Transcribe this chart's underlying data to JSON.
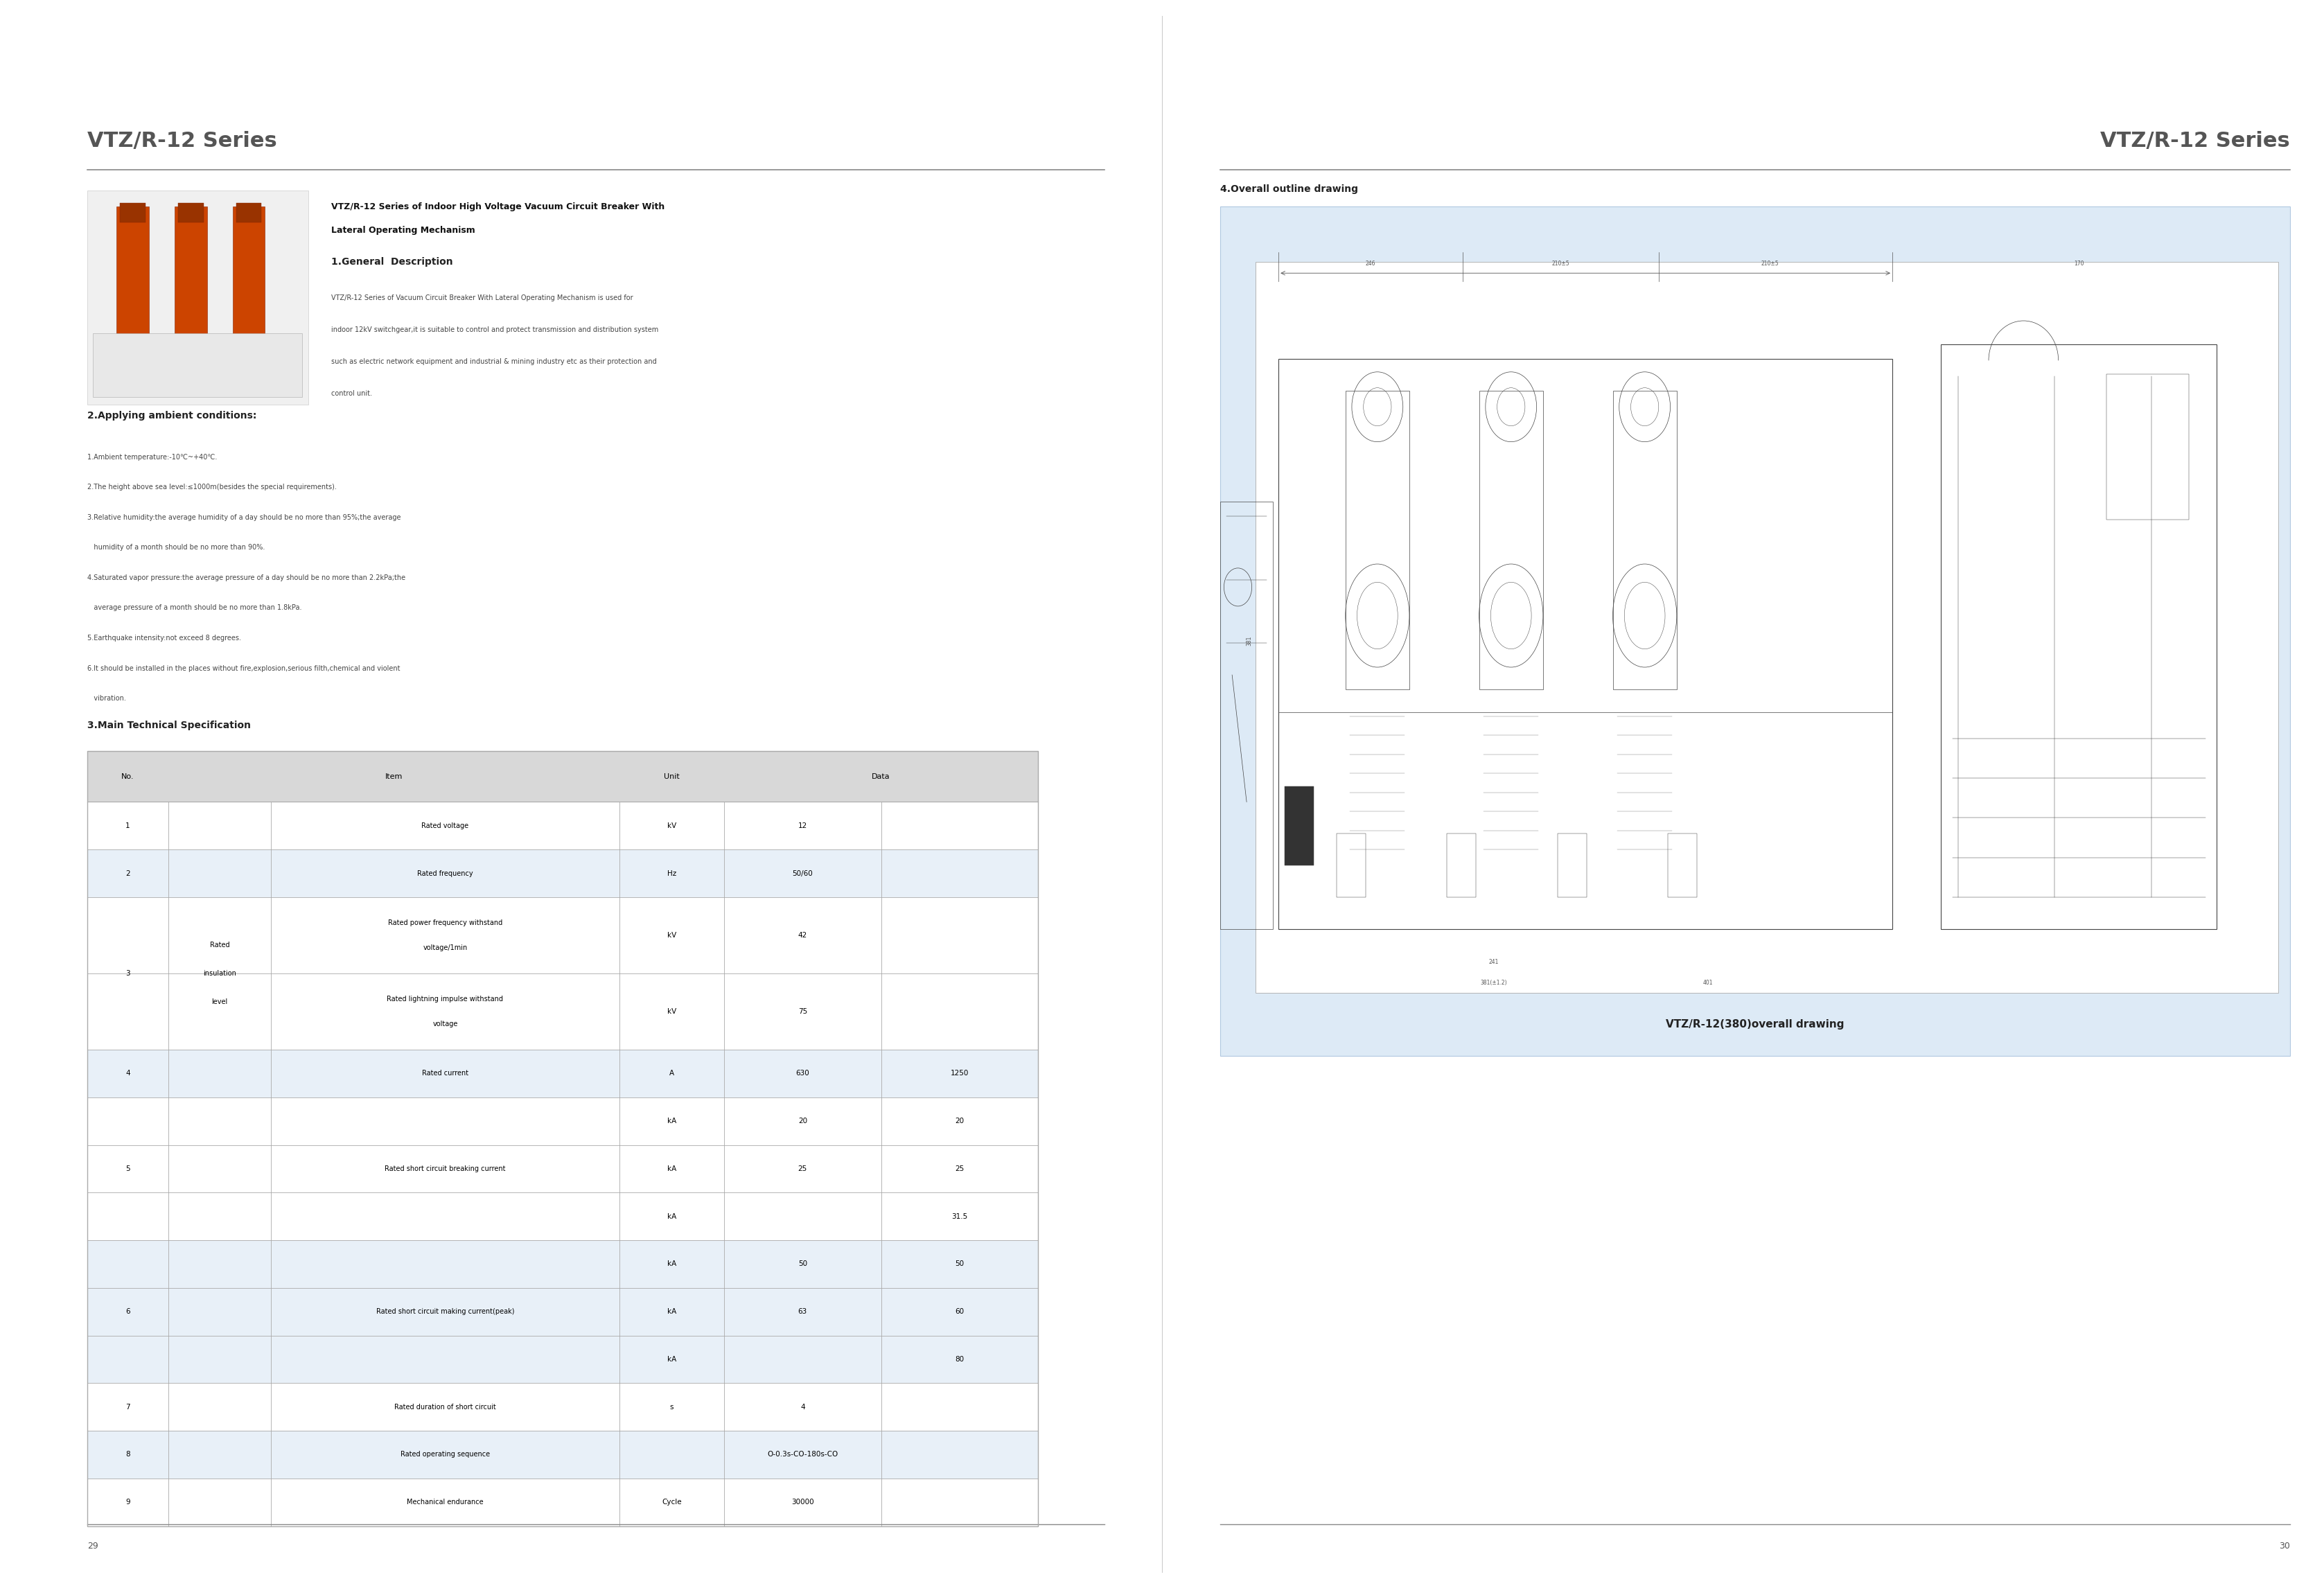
{
  "page_width": 33.55,
  "page_height": 22.92,
  "bg_color": "#ffffff",
  "left_title": "VTZ/R-12 Series",
  "right_title": "VTZ/R-12 Series",
  "title_color": "#555555",
  "divider_color": "#888888",
  "section_header_color": "#1a1a1a",
  "body_text_color": "#444444",
  "table_header_bg": "#d8d8d8",
  "table_border_color": "#aaaaaa",
  "table_row_bg_alt": "#e8f0f8",
  "right_panel_bg": "#ddeaf6",
  "product_title_line1": "VTZ/R-12 Series of Indoor High Voltage Vacuum Circuit Breaker With",
  "product_title_line2": "Lateral Operating Mechanism",
  "section1_title": "1.General  Description",
  "section1_body_lines": [
    "VTZ/R-12 Series of Vacuum Circuit Breaker With Lateral Operating Mechanism is used for",
    "indoor 12kV switchgear,it is suitable to control and protect transmission and distribution system",
    "such as electric network equipment and industrial & mining industry etc as their protection and",
    "control unit."
  ],
  "section2_title": "2.Applying ambient conditions:",
  "section2_items": [
    "1.Ambient temperature:-10℃~+40℃.",
    "2.The height above sea level:≤1000m(besides the special requirements).",
    "3.Relative humidity:the average humidity of a day should be no more than 95%;the average",
    "   humidity of a month should be no more than 90%.",
    "4.Saturated vapor pressure:the average pressure of a day should be no more than 2.2kPa;the",
    "   average pressure of a month should be no more than 1.8kPa.",
    "5.Earthquake intensity:not exceed 8 degrees.",
    "6.It should be installed in the places without fire,explosion,serious filth,chemical and violent",
    "   vibration."
  ],
  "section3_title": "3.Main Technical Specification",
  "section4_title": "4.Overall outline drawing",
  "drawing_caption": "VTZ/R-12(380)overall drawing",
  "page_left": "29",
  "page_right": "30"
}
